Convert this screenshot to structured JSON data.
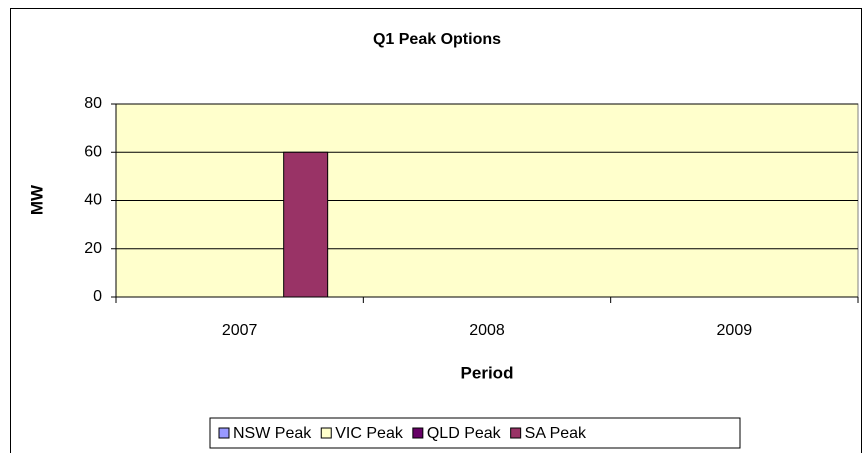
{
  "chart_data": {
    "type": "bar",
    "title": "Q1 Peak Options",
    "x_label": "Period",
    "y_label": "MW",
    "categories": [
      "2007",
      "2008",
      "2009"
    ],
    "series": [
      {
        "name": "NSW Peak",
        "color": "#9999ff",
        "values": [
          0,
          0,
          0
        ]
      },
      {
        "name": "VIC Peak",
        "color": "#ffffcc",
        "values": [
          0,
          0,
          0
        ]
      },
      {
        "name": "QLD Peak",
        "color": "#660066",
        "values": [
          0,
          0,
          0
        ]
      },
      {
        "name": "SA Peak",
        "color": "#993366",
        "values": [
          60,
          0,
          0
        ]
      }
    ],
    "ylim": [
      0,
      80
    ],
    "yticks": [
      0,
      20,
      40,
      60,
      80
    ],
    "grid": true,
    "legend": "bottom"
  }
}
